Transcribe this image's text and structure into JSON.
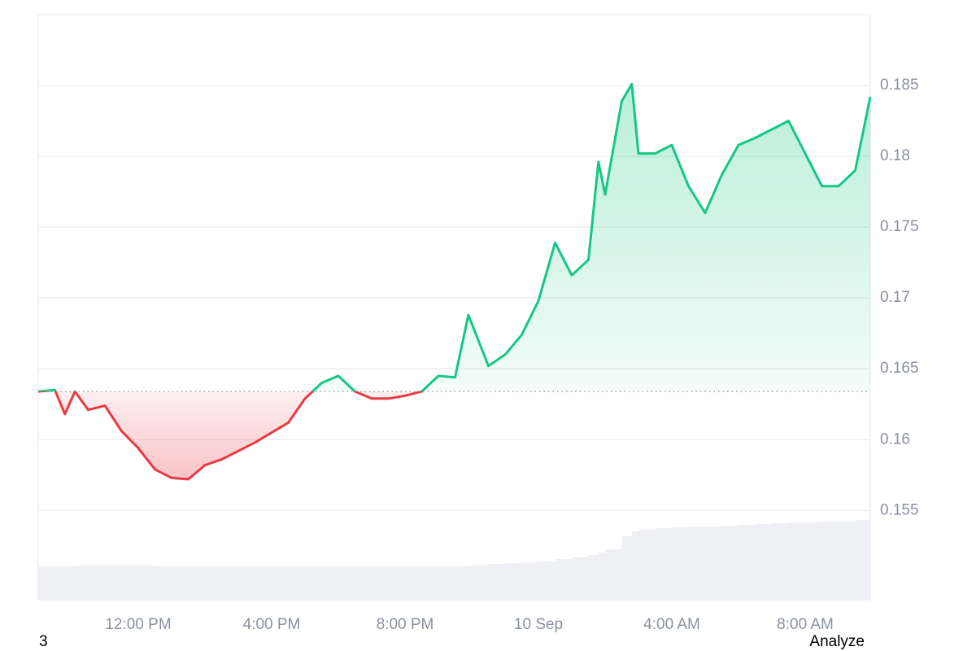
{
  "chart_data": {
    "type": "line",
    "x": [
      9,
      9.5,
      9.8,
      10.1,
      10.5,
      11,
      11.5,
      12,
      12.5,
      13,
      13.5,
      14,
      14.5,
      15,
      15.5,
      16,
      16.5,
      17,
      17.5,
      18,
      18.5,
      19,
      19.5,
      20,
      20.5,
      21,
      21.5,
      21.9,
      22.5,
      23,
      23.5,
      24,
      24.5,
      25,
      25.5,
      25.8,
      26,
      26.5,
      26.8,
      27,
      27.5,
      28,
      28.5,
      29,
      29.5,
      30,
      30.5,
      31,
      31.5,
      32,
      32.5,
      33,
      33.5,
      33.95
    ],
    "values": [
      0.1634,
      0.1635,
      0.1618,
      0.1634,
      0.1621,
      0.1624,
      0.1606,
      0.1594,
      0.1579,
      0.1573,
      0.1572,
      0.1582,
      0.1586,
      0.1592,
      0.1598,
      0.1605,
      0.1612,
      0.1629,
      0.164,
      0.1645,
      0.1634,
      0.1629,
      0.1629,
      0.1631,
      0.1634,
      0.1645,
      0.1644,
      0.1688,
      0.1652,
      0.166,
      0.1674,
      0.1698,
      0.1739,
      0.1716,
      0.1727,
      0.1796,
      0.1773,
      0.1839,
      0.1851,
      0.1802,
      0.1802,
      0.1808,
      0.1779,
      0.176,
      0.1787,
      0.1808,
      0.1813,
      0.1819,
      0.1825,
      0.1802,
      0.1779,
      0.1779,
      0.179,
      0.1842
    ],
    "volume": [
      41,
      41,
      41,
      42,
      42,
      42,
      42,
      42,
      41,
      41,
      41,
      41,
      41,
      41,
      41,
      41,
      41,
      41,
      41,
      41,
      41,
      41,
      41,
      41,
      41,
      41,
      41,
      42,
      44,
      45,
      46,
      47,
      50,
      52,
      55,
      58,
      62,
      78,
      84,
      86,
      88,
      89,
      90,
      90,
      91,
      92,
      93,
      94,
      95,
      95,
      96,
      96,
      98,
      100
    ],
    "xlim": [
      9,
      33.95
    ],
    "ylim": [
      0.1487,
      0.19
    ],
    "yticks": [
      0.155,
      0.16,
      0.165,
      0.17,
      0.175,
      0.18,
      0.185
    ],
    "xticks": [
      {
        "value": 12,
        "label": "12:00 PM"
      },
      {
        "value": 16,
        "label": "4:00 PM"
      },
      {
        "value": 20,
        "label": "8:00 PM"
      },
      {
        "value": 24,
        "label": "10 Sep"
      },
      {
        "value": 28,
        "label": "4:00 AM"
      },
      {
        "value": 32,
        "label": "8:00 AM"
      }
    ],
    "up_color": "#16c784",
    "down_color": "#ea3943",
    "grid": true
  },
  "footer": {
    "left": "3",
    "right": "Analyze"
  }
}
